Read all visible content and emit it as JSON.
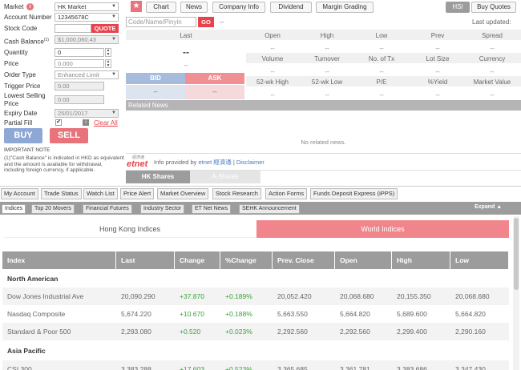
{
  "order_form": {
    "market_label": "Market",
    "market_value": "HK Market",
    "account_label": "Account Number",
    "account_value": "12345678C",
    "stock_code_label": "Stock Code",
    "stock_code_value": "",
    "quote_button": "QUOTE",
    "cash_balance_label": "Cash Balance",
    "cash_balance_sup": "(1)",
    "cash_balance_value": "$1,000,060.43",
    "quantity_label": "Quantity",
    "quantity_value": "0",
    "price_label": "Price",
    "price_value": "0.000",
    "order_type_label": "Order Type",
    "order_type_value": "Enhanced Limit",
    "trigger_price_label": "Trigger Price",
    "trigger_price_value": "0.00",
    "lowest_selling_label": "Lowest Selling Price",
    "lowest_selling_value": "0.00",
    "expiry_label": "Expiry Date",
    "expiry_value": "25/01/2017",
    "partial_fill_label": "Partial Fill",
    "clear_all": "Clear All",
    "buy_button": "BUY",
    "sell_button": "SELL",
    "important_note": "IMPORTANT NOTE",
    "note_text": "(1)\"Cash Balance\" is indicated in HKD as equivalent and the amount is available for withdrawal, including foreign currency, if applicable."
  },
  "quote_panel": {
    "tabs": [
      "Chart",
      "News",
      "Company Info",
      "Dividend",
      "Margin Grading"
    ],
    "right_tabs": [
      "HSI",
      "Buy Quotes"
    ],
    "search_placeholder": "Code/Name/Pinyin",
    "go_button": "GO",
    "search_dash": "--",
    "last_updated": "Last updated:",
    "last_label": "Last",
    "last_value": "--",
    "last_sub": "--",
    "bid_label": "BID",
    "ask_label": "ASK",
    "bid_value": "--",
    "ask_value": "--",
    "row1_headers": [
      "Open",
      "High",
      "Low",
      "Prev",
      "Spread"
    ],
    "row1_values": [
      "--",
      "--",
      "--",
      "--",
      "--"
    ],
    "row2_headers": [
      "Volume",
      "Turnover",
      "No. of Tx",
      "Lot Size",
      "Currency"
    ],
    "row2_values": [
      "--",
      "--",
      "--",
      "--",
      "--"
    ],
    "row3_headers": [
      "52-wk High",
      "52-wk Low",
      "P/E",
      "%Yield",
      "Market Value"
    ],
    "row3_values": [
      "--",
      "--",
      "--",
      "--",
      "--"
    ],
    "related_news": "Related News",
    "no_news": "No related news.",
    "provider_text": "Info provided by",
    "provider_link": "etnet 經濟通",
    "disclaimer": "Disclaimer",
    "logo_text": "etnet",
    "logo_small": "經濟通",
    "lower_tabs": [
      "HK Shares",
      "A-Shares"
    ]
  },
  "nav_tabs": [
    "My Account",
    "Trade Status",
    "Watch List",
    "Price Alert",
    "Market Overview",
    "Stock Research",
    "Action Forms",
    "Funds Deposit Express (iPPS)"
  ],
  "sub_tabs": [
    "Indices",
    "Top 20 Movers",
    "Financial Futures",
    "Industry Sector",
    "ET Net News",
    "SEHK Announcement"
  ],
  "expand_label": "Expand",
  "indices_toggle": [
    "Hong Kong Indices",
    "World Indices"
  ],
  "colors": {
    "accent_red": "#e8737a",
    "accent_blue": "#8ea8d6",
    "positive": "#3aa33a"
  },
  "table": {
    "headers": [
      "Index",
      "Last",
      "Change",
      "%Change",
      "Prev. Close",
      "Open",
      "High",
      "Low"
    ],
    "groups": [
      {
        "name": "North American",
        "rows": [
          [
            "Dow Jones Industrial Ave",
            "20,090.290",
            "+37.870",
            "+0.189%",
            "20,052.420",
            "20,068.680",
            "20,155.350",
            "20,068.680"
          ],
          [
            "Nasdaq Composite",
            "5,674.220",
            "+10.670",
            "+0.188%",
            "5,663.550",
            "5,664.820",
            "5,689.600",
            "5,664.820"
          ],
          [
            "Standard & Poor 500",
            "2,293.080",
            "+0.520",
            "+0.023%",
            "2,292.560",
            "2,292.560",
            "2,299.400",
            "2,290.160"
          ]
        ]
      },
      {
        "name": "Asia Pacific",
        "rows": [
          [
            "CSI 300",
            "3,383.288",
            "+17.603",
            "+0.523%",
            "3,365.685",
            "3,361.781",
            "3,383.686",
            "3,347.430"
          ]
        ]
      }
    ]
  }
}
